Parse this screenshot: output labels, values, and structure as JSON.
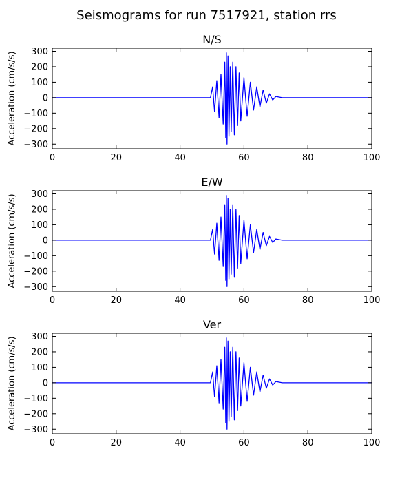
{
  "figure": {
    "title": "Seismograms for run 7517921, station rrs"
  },
  "chart_data": [
    {
      "type": "line",
      "title": "N/S",
      "xlabel": "",
      "ylabel": "Acceleration (cm/s/s)",
      "xlim": [
        0,
        100
      ],
      "ylim": [
        -330,
        320
      ],
      "x_ticks": [
        0,
        20,
        40,
        60,
        80,
        100
      ],
      "y_ticks": [
        -300,
        -200,
        -100,
        0,
        100,
        200,
        300
      ],
      "series": [
        {
          "color": "#0000ff",
          "x": [
            0,
            49.5,
            50.2,
            50.8,
            51.5,
            52.2,
            52.8,
            53.5,
            54.0,
            54.3,
            54.5,
            54.7,
            55.0,
            55.3,
            55.7,
            56.0,
            56.5,
            57.0,
            57.5,
            58.0,
            58.5,
            59.0,
            60.0,
            61.0,
            62.0,
            63.0,
            64.0,
            65.0,
            66.0,
            67.0,
            68.0,
            69.0,
            70.0,
            72.0,
            100
          ],
          "y": [
            0,
            0,
            70,
            -90,
            110,
            -130,
            150,
            -170,
            230,
            -260,
            290,
            -300,
            270,
            -250,
            200,
            -220,
            230,
            -240,
            200,
            -180,
            160,
            -150,
            130,
            -120,
            100,
            -80,
            70,
            -60,
            50,
            -35,
            25,
            -15,
            8,
            0,
            0
          ]
        }
      ]
    },
    {
      "type": "line",
      "title": "E/W",
      "xlabel": "",
      "ylabel": "Acceleration (cm/s/s)",
      "xlim": [
        0,
        100
      ],
      "ylim": [
        -330,
        320
      ],
      "x_ticks": [
        0,
        20,
        40,
        60,
        80,
        100
      ],
      "y_ticks": [
        -300,
        -200,
        -100,
        0,
        100,
        200,
        300
      ],
      "series": [
        {
          "color": "#0000ff",
          "x": [
            0,
            49.5,
            50.2,
            50.8,
            51.5,
            52.2,
            52.8,
            53.5,
            54.0,
            54.3,
            54.5,
            54.7,
            55.0,
            55.3,
            55.7,
            56.0,
            56.5,
            57.0,
            57.5,
            58.0,
            58.5,
            59.0,
            60.0,
            61.0,
            62.0,
            63.0,
            64.0,
            65.0,
            66.0,
            67.0,
            68.0,
            69.0,
            70.0,
            72.0,
            100
          ],
          "y": [
            0,
            0,
            70,
            -90,
            110,
            -130,
            150,
            -170,
            230,
            -260,
            290,
            -300,
            270,
            -250,
            200,
            -220,
            230,
            -240,
            200,
            -180,
            160,
            -150,
            130,
            -120,
            100,
            -80,
            70,
            -60,
            50,
            -35,
            25,
            -15,
            8,
            0,
            0
          ]
        }
      ]
    },
    {
      "type": "line",
      "title": "Ver",
      "xlabel": "",
      "ylabel": "Acceleration (cm/s/s)",
      "xlim": [
        0,
        100
      ],
      "ylim": [
        -330,
        320
      ],
      "x_ticks": [
        0,
        20,
        40,
        60,
        80,
        100
      ],
      "y_ticks": [
        -300,
        -200,
        -100,
        0,
        100,
        200,
        300
      ],
      "series": [
        {
          "color": "#0000ff",
          "x": [
            0,
            49.5,
            50.2,
            50.8,
            51.5,
            52.2,
            52.8,
            53.5,
            54.0,
            54.3,
            54.5,
            54.7,
            55.0,
            55.3,
            55.7,
            56.0,
            56.5,
            57.0,
            57.5,
            58.0,
            58.5,
            59.0,
            60.0,
            61.0,
            62.0,
            63.0,
            64.0,
            65.0,
            66.0,
            67.0,
            68.0,
            69.0,
            70.0,
            72.0,
            100
          ],
          "y": [
            0,
            0,
            70,
            -90,
            110,
            -130,
            150,
            -170,
            230,
            -260,
            290,
            -300,
            270,
            -250,
            200,
            -220,
            230,
            -240,
            200,
            -180,
            160,
            -150,
            130,
            -120,
            100,
            -80,
            70,
            -60,
            50,
            -35,
            25,
            -15,
            8,
            0,
            0
          ]
        }
      ]
    }
  ]
}
